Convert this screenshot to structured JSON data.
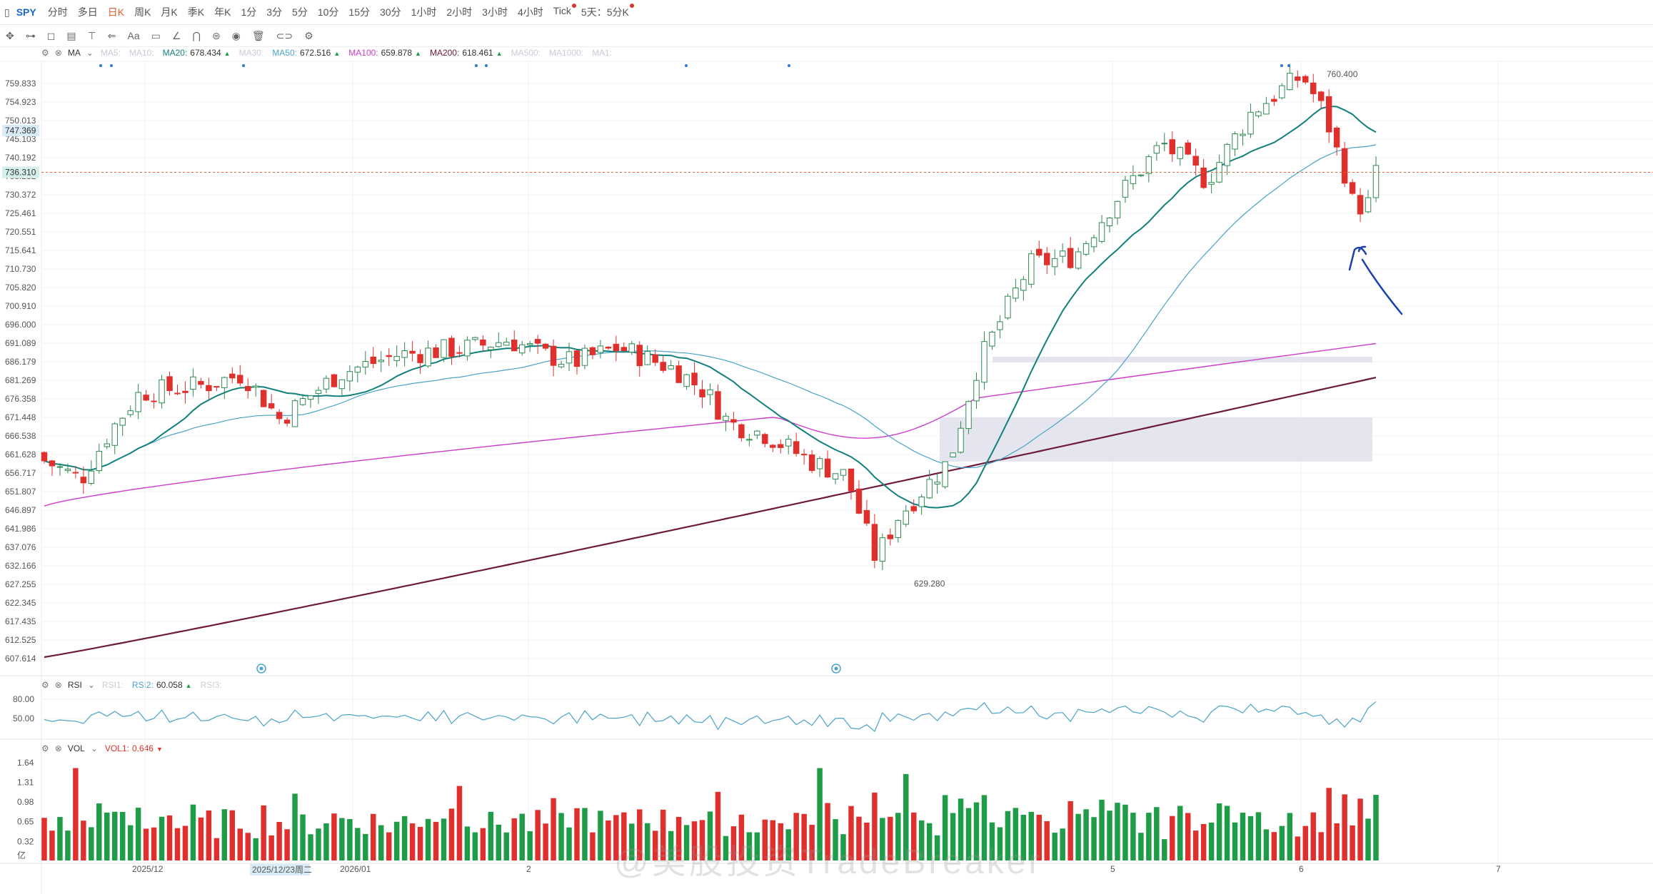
{
  "toolbar": {
    "symbol": "SPY",
    "periods": [
      "分时",
      "多日",
      "日K",
      "周K",
      "月K",
      "季K",
      "年K",
      "1分",
      "3分",
      "5分",
      "10分",
      "15分",
      "30分",
      "1小时",
      "2小时",
      "3小时",
      "4小时",
      "Tick",
      "5天：5分K"
    ],
    "active_period": "日K",
    "dropdown_glyph": "⌄"
  },
  "drawtools": {
    "icons": [
      "move-icon",
      "line-tool-icon",
      "rect-tool-icon",
      "measure-icon",
      "text-tool-icon",
      "arrow-tool-icon",
      "font-tool-icon",
      "comment-icon",
      "brush-icon",
      "magnet-icon",
      "eye-icon",
      "record-icon",
      "trash-icon",
      "link-icon",
      "settings-icon"
    ],
    "glyphs": [
      "✥",
      "⊶",
      "◻",
      "▤",
      "⊤",
      "⇐",
      "Aa",
      "▭",
      "∠",
      "⋂",
      "⊜",
      "◉",
      "🗑",
      "⊂⊃",
      "⚙"
    ]
  },
  "main_legend": {
    "name": "MA",
    "items": [
      {
        "label": "MA5:",
        "value": "",
        "color": "#f5c99a",
        "enabled": false
      },
      {
        "label": "MA10:",
        "value": "",
        "color": "#aad4e8",
        "enabled": false
      },
      {
        "label": "MA20:",
        "value": "678.434",
        "color": "#12807a",
        "enabled": true
      },
      {
        "label": "MA30:",
        "value": "",
        "color": "#aad4e8",
        "enabled": false
      },
      {
        "label": "MA50:",
        "value": "672.516",
        "color": "#4ba3c7",
        "enabled": true
      },
      {
        "label": "MA100:",
        "value": "659.878",
        "color": "#cc3dcc",
        "enabled": true
      },
      {
        "label": "MA200:",
        "value": "618.461",
        "color": "#6e1a3c",
        "enabled": true
      },
      {
        "label": "MA500:",
        "value": "",
        "color": "#f0c080",
        "enabled": false
      },
      {
        "label": "MA1000:",
        "value": "",
        "color": "#d0c8e8",
        "enabled": false
      },
      {
        "label": "MA1:",
        "value": "",
        "color": "#d0c8e8",
        "enabled": false
      }
    ],
    "up_arrow": "▲"
  },
  "price_axis": {
    "ticks": [
      "759.833",
      "754.923",
      "750.013",
      "745.103",
      "740.192",
      "735.282",
      "730.372",
      "725.461",
      "720.551",
      "715.641",
      "710.730",
      "705.820",
      "700.910",
      "696.000",
      "691.089",
      "686.179",
      "681.269",
      "676.358",
      "671.448",
      "666.538",
      "661.628",
      "656.717",
      "651.807",
      "646.897",
      "641.986",
      "637.076",
      "632.166",
      "627.255",
      "622.345",
      "617.435",
      "612.525",
      "607.614"
    ],
    "highlight_a": "747.369",
    "highlight_b": "736.310"
  },
  "annotations": {
    "high_label": "760.400",
    "low_label": "629.280"
  },
  "rsi_legend": {
    "name": "RSI",
    "items": [
      {
        "label": "RSI1:",
        "value": "",
        "color": "#f5c99a",
        "enabled": false
      },
      {
        "label": "RSI2:",
        "value": "60.058",
        "color": "#4ba3c7",
        "enabled": true
      },
      {
        "label": "RSI3:",
        "value": "",
        "color": "#f0b8c8",
        "enabled": false
      }
    ],
    "ticks": [
      "80.00",
      "50.00"
    ]
  },
  "vol_legend": {
    "name": "VOL",
    "items": [
      {
        "label": "VOL1:",
        "value": "0.646",
        "color": "#e0302d",
        "enabled": true
      }
    ],
    "down_arrow": "▼",
    "ticks": [
      "1.64",
      "1.31",
      "0.98",
      "0.65",
      "0.32",
      "亿"
    ]
  },
  "time_axis": {
    "labels": [
      {
        "text": "2025/12",
        "x": 203
      },
      {
        "text": "2026/01",
        "x": 494
      },
      {
        "text": "2",
        "x": 740
      },
      {
        "text": "5",
        "x": 1558
      },
      {
        "text": "6",
        "x": 1822
      },
      {
        "text": "7",
        "x": 2098
      }
    ],
    "cursor_label": "2025/12/23周二"
  },
  "colors": {
    "up": "#ffffff",
    "up_stroke": "#2f8a52",
    "down": "#e0302d",
    "vol_up": "#1e9c47",
    "vol_down": "#e0302d",
    "accent": "#e0602d",
    "box_fill": "#e4e5ee"
  },
  "watermark": "@美股投资TradeBreaker"
}
